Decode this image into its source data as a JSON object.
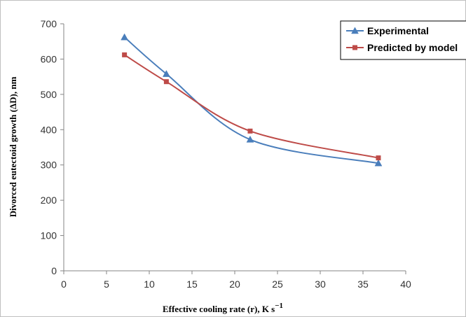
{
  "chart_data": {
    "type": "line",
    "smooth": true,
    "xlabel": "Effective cooling rate (r), K s",
    "xlabel_superscript": "−1",
    "ylabel": "Divorced eutectoid growth (ΔD), nm",
    "xlim": [
      0,
      40
    ],
    "ylim": [
      0,
      700
    ],
    "xticks": [
      "0",
      "5",
      "10",
      "15",
      "20",
      "25",
      "30",
      "35",
      "40"
    ],
    "yticks": [
      "0",
      "100",
      "200",
      "300",
      "400",
      "500",
      "600",
      "700"
    ],
    "grid": false,
    "legend_position": "top-right",
    "series": [
      {
        "name": "Experimental",
        "color": "#4a7ebb",
        "marker": "triangle",
        "x": [
          7.1,
          12,
          21.8,
          36.8
        ],
        "y": [
          662,
          558,
          372,
          305
        ]
      },
      {
        "name": "Predicted by model",
        "color": "#be4b48",
        "marker": "square",
        "x": [
          7.1,
          12,
          21.8,
          36.8
        ],
        "y": [
          612,
          536,
          396,
          320
        ]
      }
    ]
  }
}
